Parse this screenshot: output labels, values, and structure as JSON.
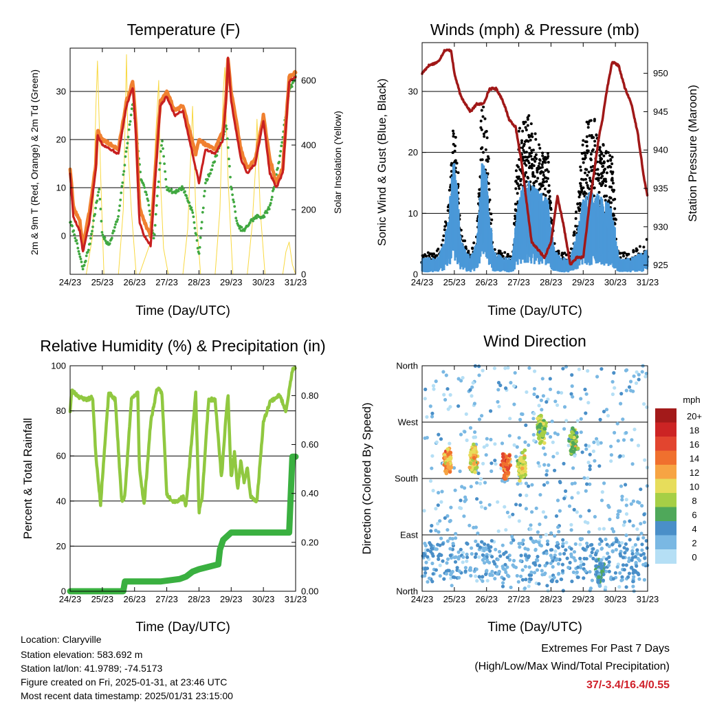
{
  "panels": {
    "temperature": {
      "title": "Temperature (F)",
      "xlabel": "Time (Day/UTC)",
      "ylabel_left": "2m & 9m T (Red, Orange) & 2m Td (Green)",
      "ylabel_right": "Solar Insolation (Yellow)"
    },
    "winds": {
      "title": "Winds (mph) & Pressure (mb)",
      "xlabel": "Time (Day/UTC)",
      "ylabel_left": "Sonic Wind & Gust (Blue, Black)",
      "ylabel_right": "Station Pressure (Maroon)"
    },
    "humidity": {
      "title": "Relative Humidity (%) & Precipitation (in)",
      "xlabel": "Time (Day/UTC)",
      "ylabel_left": "Percent & Total Rainfall"
    },
    "direction": {
      "title": "Wind Direction",
      "xlabel": "Time (Day/UTC)",
      "ylabel_left": "Direction (Colored By Speed)",
      "legend_title": "mph"
    }
  },
  "footer": {
    "location": "Location: Claryville",
    "elevation": "Station elevation: 583.692 m",
    "latlon": "Station lat/lon: 41.9789; -74.5173",
    "created": "Figure created on Fri, 2025-01-31, at 23:46 UTC",
    "recent": "Most recent data timestamp: 2025/01/31 23:15:00"
  },
  "extremes": {
    "line1": "Extremes For Past 7 Days",
    "line2": "(High/Low/Max Wind/Total Precipitation)",
    "values": "37/-3.4/16.4/0.55"
  },
  "chart_data": [
    {
      "id": "temperature",
      "type": "line",
      "title": "Temperature (F)",
      "x_ticks": [
        "24/23",
        "25/23",
        "26/23",
        "27/23",
        "28/23",
        "29/23",
        "30/23",
        "31/23"
      ],
      "xlim": [
        0,
        7
      ],
      "ylim": [
        -8,
        39
      ],
      "yticks": [
        "0",
        "10",
        "20",
        "30"
      ],
      "ytick_values": [
        0,
        10,
        20,
        30
      ],
      "y2lim": [
        0,
        700
      ],
      "y2ticks": [
        "0",
        "200",
        "400",
        "600"
      ],
      "y2tick_values": [
        0,
        200,
        400,
        600
      ],
      "colors": {
        "t9m": "#f08030",
        "t2m": "#c82020",
        "td2m": "#40a840",
        "solar": "#f8d840"
      },
      "series": [
        {
          "name": "9m T",
          "x": [
            0,
            0.1,
            0.3,
            0.4,
            0.6,
            0.8,
            0.85,
            1,
            1.5,
            1.75,
            1.95,
            2.05,
            2.15,
            2.3,
            2.5,
            2.8,
            3,
            3.25,
            3.5,
            3.7,
            3.9,
            4,
            4.2,
            4.5,
            4.75,
            4.85,
            4.9,
            5,
            5.3,
            5.5,
            5.75,
            6,
            6.2,
            6.4,
            6.6,
            6.8,
            7
          ],
          "y": [
            14,
            6,
            3,
            -2,
            5,
            15,
            22,
            20,
            18,
            28,
            32,
            22,
            6,
            3,
            0,
            28,
            30,
            26,
            27,
            22,
            17,
            20,
            19,
            18,
            22,
            30,
            37,
            30,
            18,
            14,
            16,
            25,
            16,
            11,
            14,
            33,
            34
          ]
        },
        {
          "name": "2m T",
          "x": [
            0,
            0.1,
            0.3,
            0.4,
            0.6,
            0.8,
            0.85,
            1,
            1.5,
            1.75,
            1.95,
            2.05,
            2.15,
            2.3,
            2.5,
            2.8,
            3,
            3.25,
            3.5,
            3.7,
            3.9,
            4,
            4.2,
            4.5,
            4.75,
            4.85,
            4.9,
            5,
            5.3,
            5.5,
            5.75,
            6,
            6.2,
            6.4,
            6.6,
            6.8,
            7
          ],
          "y": [
            13,
            4,
            1,
            -3.4,
            3,
            14,
            21,
            19,
            17,
            27,
            31,
            20,
            3,
            0,
            -2,
            27,
            29,
            25,
            26,
            20,
            14,
            11,
            18,
            17,
            20,
            29,
            37,
            28,
            16,
            13,
            15,
            24,
            13,
            10,
            13,
            32,
            33
          ]
        },
        {
          "name": "2m Td",
          "x": [
            0,
            0.15,
            0.4,
            0.6,
            0.9,
            1,
            1.2,
            1.5,
            1.75,
            1.95,
            2.2,
            2.4,
            2.6,
            2.85,
            3,
            3.2,
            3.5,
            3.8,
            4,
            4.2,
            4.4,
            4.6,
            4.85,
            5,
            5.2,
            5.4,
            5.6,
            5.8,
            6,
            6.2,
            6.5,
            6.8,
            7
          ],
          "y": [
            3,
            0,
            -7,
            -2,
            10,
            0,
            -2,
            4,
            18,
            28,
            12,
            8,
            -1,
            20,
            10,
            9,
            10,
            5,
            -4,
            11,
            14,
            18,
            23,
            10,
            2,
            1,
            3,
            4,
            4,
            6,
            16,
            30,
            33
          ]
        },
        {
          "name": "Solar Insolation",
          "x": [
            0.5,
            0.7,
            0.8,
            0.85,
            0.95,
            1.05,
            1.5,
            1.65,
            1.75,
            1.8,
            1.9,
            2.05,
            2.15,
            2.5,
            2.65,
            2.75,
            2.8,
            2.9,
            3.05,
            3.5,
            3.65,
            3.75,
            3.8,
            3.9,
            4.05,
            4.5,
            4.65,
            4.75,
            4.8,
            4.9,
            5.05,
            5.5,
            5.65,
            5.75,
            5.8,
            5.9,
            6.05,
            6.6,
            6.7,
            6.8,
            6.9,
            7
          ],
          "y": [
            0,
            120,
            520,
            660,
            300,
            0,
            0,
            200,
            680,
            380,
            200,
            0,
            0,
            100,
            420,
            600,
            300,
            80,
            0,
            0,
            140,
            380,
            520,
            200,
            0,
            0,
            200,
            560,
            640,
            300,
            0,
            0,
            150,
            320,
            480,
            200,
            0,
            0,
            70,
            100,
            30,
            0
          ]
        }
      ]
    },
    {
      "id": "winds",
      "type": "line",
      "title": "Winds (mph) & Pressure (mb)",
      "x_ticks": [
        "24/23",
        "25/23",
        "26/23",
        "27/23",
        "28/23",
        "29/23",
        "30/23",
        "31/23"
      ],
      "xlim": [
        0,
        7
      ],
      "ylim": [
        0,
        38
      ],
      "yticks": [
        "0",
        "10",
        "20",
        "30"
      ],
      "ytick_values": [
        0,
        10,
        20,
        30
      ],
      "y2lim": [
        923.8,
        954
      ],
      "y2ticks": [
        "925",
        "930",
        "935",
        "940",
        "945",
        "950"
      ],
      "y2tick_values": [
        925,
        930,
        935,
        940,
        945,
        950
      ],
      "colors": {
        "wind": "#4a98d8",
        "gust": "#000000",
        "pressure": "#a01818"
      },
      "series": [
        {
          "name": "Sonic Wind",
          "x": [
            0,
            0.4,
            0.6,
            0.8,
            1,
            1.2,
            1.5,
            1.7,
            1.85,
            2,
            2.2,
            2.5,
            2.8,
            3,
            3.3,
            3.6,
            3.9,
            4.1,
            4.3,
            4.6,
            4.8,
            5,
            5.3,
            5.6,
            5.9,
            6.1,
            6.5,
            7
          ],
          "y": [
            2,
            2,
            3,
            6,
            15,
            4,
            2,
            4,
            14,
            12,
            3,
            2,
            2,
            10,
            11,
            10,
            9,
            3,
            2,
            2,
            5,
            9,
            10,
            9,
            8,
            2,
            2,
            3
          ]
        },
        {
          "name": "Gust",
          "x": [
            0,
            0.4,
            0.6,
            0.8,
            1,
            1.2,
            1.5,
            1.7,
            1.85,
            2,
            2.2,
            2.5,
            2.8,
            3,
            3.3,
            3.6,
            3.9,
            4.1,
            4.3,
            4.6,
            4.8,
            5,
            5.3,
            5.6,
            5.9,
            6.1,
            6.5,
            7
          ],
          "y": [
            3,
            3,
            4,
            9,
            22,
            6,
            3,
            6,
            25,
            20,
            4,
            3,
            3,
            20,
            22,
            18,
            17,
            4,
            3,
            3,
            9,
            20,
            22,
            18,
            16,
            3,
            3,
            5
          ]
        },
        {
          "name": "Station Pressure",
          "x": [
            0,
            0.2,
            0.5,
            0.7,
            0.9,
            1,
            1.2,
            1.5,
            1.7,
            1.9,
            2.1,
            2.3,
            2.5,
            2.7,
            2.9,
            3.1,
            3.4,
            3.6,
            3.8,
            4,
            4.2,
            4.4,
            4.6,
            4.8,
            5,
            5.2,
            5.5,
            5.6,
            5.7,
            5.9,
            6.1,
            6.3,
            6.5,
            6.7,
            6.9,
            7
          ],
          "y": [
            950,
            951,
            951.5,
            953,
            953,
            950,
            947,
            945,
            946,
            946,
            948,
            948,
            946.5,
            944,
            943,
            938,
            928,
            927,
            926,
            928,
            934,
            930,
            925,
            926,
            926,
            933,
            942,
            944,
            947,
            951.5,
            951,
            948,
            946,
            942,
            936,
            934
          ]
        }
      ]
    },
    {
      "id": "humidity",
      "type": "line",
      "title": "Relative Humidity (%) & Precipitation (in)",
      "x_ticks": [
        "24/23",
        "25/23",
        "26/23",
        "27/23",
        "28/23",
        "29/23",
        "30/23",
        "31/23"
      ],
      "xlim": [
        0,
        7
      ],
      "ylim": [
        0,
        100
      ],
      "yticks": [
        "0",
        "20",
        "40",
        "60",
        "80",
        "100"
      ],
      "ytick_values": [
        0,
        20,
        40,
        60,
        80,
        100
      ],
      "y2lim": [
        0,
        0.922
      ],
      "y2ticks": [
        "0.00",
        "0.20",
        "0.40",
        "0.60",
        "0.80"
      ],
      "y2tick_values": [
        0,
        0.2,
        0.4,
        0.6,
        0.8
      ],
      "colors": {
        "rh": "#90c840",
        "precip": "#3ab040"
      },
      "series": [
        {
          "name": "Relative Humidity",
          "x": [
            0,
            0.05,
            0.3,
            0.5,
            0.7,
            0.8,
            0.95,
            1,
            1.2,
            1.4,
            1.6,
            1.7,
            1.9,
            2.1,
            2.15,
            2.3,
            2.5,
            2.7,
            2.85,
            3,
            3.2,
            3.35,
            3.5,
            3.6,
            3.7,
            3.9,
            4,
            4.1,
            4.3,
            4.5,
            4.7,
            4.8,
            4.9,
            5,
            5.1,
            5.2,
            5.3,
            5.4,
            5.5,
            5.6,
            5.8,
            6,
            6.2,
            6.5,
            6.7,
            6.9,
            7
          ],
          "y": [
            80,
            89,
            86,
            85,
            86,
            60,
            38,
            50,
            88,
            85,
            40,
            42,
            85,
            88,
            55,
            38,
            75,
            90,
            88,
            43,
            40,
            40,
            42,
            38,
            55,
            88,
            35,
            42,
            85,
            85,
            50,
            70,
            88,
            50,
            62,
            45,
            58,
            48,
            55,
            42,
            40,
            75,
            84,
            87,
            80,
            98,
            99
          ]
        },
        {
          "name": "Total Rainfall",
          "x": [
            0,
            1.65,
            1.7,
            2.8,
            3.4,
            3.6,
            3.8,
            4,
            4.6,
            4.65,
            4.75,
            5,
            6.8,
            6.85,
            6.9,
            7
          ],
          "y": [
            0,
            0,
            0.04,
            0.04,
            0.05,
            0.06,
            0.08,
            0.09,
            0.11,
            0.17,
            0.21,
            0.24,
            0.24,
            0.4,
            0.55,
            0.55
          ]
        }
      ]
    },
    {
      "id": "direction",
      "type": "scatter",
      "title": "Wind Direction",
      "x_ticks": [
        "24/23",
        "25/23",
        "26/23",
        "27/23",
        "28/23",
        "29/23",
        "30/23",
        "31/23"
      ],
      "xlim": [
        0,
        7
      ],
      "ylim": [
        0,
        360
      ],
      "yticks": [
        "North",
        "East",
        "South",
        "West",
        "North"
      ],
      "ytick_values": [
        0,
        90,
        180,
        270,
        360
      ],
      "legend": {
        "title": "mph",
        "labels": [
          "20+",
          "18",
          "16",
          "14",
          "12",
          "10",
          "8",
          "6",
          "4",
          "2",
          "0"
        ],
        "colors": [
          "#a31a1a",
          "#cc2424",
          "#e2452f",
          "#f0702e",
          "#f7a443",
          "#e7dd5b",
          "#a6cf46",
          "#4fa85a",
          "#4a8fc8",
          "#7ab8e3",
          "#b5dff5"
        ]
      },
      "clusters": [
        {
          "x": 0.8,
          "dir": 210,
          "speed": 12
        },
        {
          "x": 1.6,
          "dir": 212,
          "speed": 10
        },
        {
          "x": 2.6,
          "dir": 200,
          "speed": 14
        },
        {
          "x": 3.1,
          "dir": 200,
          "speed": 9
        },
        {
          "x": 3.7,
          "dir": 260,
          "speed": 8
        },
        {
          "x": 4.7,
          "dir": 240,
          "speed": 7
        },
        {
          "x": 5.5,
          "dir": 30,
          "speed": 4
        }
      ]
    }
  ]
}
